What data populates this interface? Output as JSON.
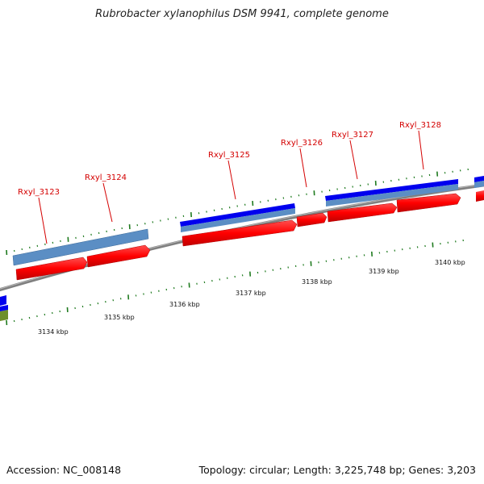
{
  "title": "Rubrobacter xylanophilus DSM 9941, complete genome",
  "footer": {
    "accession": "Accession: NC_008148",
    "topology": "Topology: circular; Length: 3,225,748 bp; Genes: 3,203"
  },
  "colors": {
    "backbone": "#8c8c8c",
    "forward_cds": "#0000ee",
    "forward_gene": "#5b8ec4",
    "reverse_gene": "#ff0000",
    "other_feature": "#6e8f2a",
    "tick": "#1e7a1e",
    "gene_label": "#d40000"
  },
  "position_labels": [
    "3134 kbp",
    "3135 kbp",
    "3136 kbp",
    "3137 kbp",
    "3138 kbp",
    "3139 kbp",
    "3140 kbp"
  ],
  "gene_labels": [
    "Rxyl_3123",
    "Rxyl_3124",
    "Rxyl_3125",
    "Rxyl_3126",
    "Rxyl_3127",
    "Rxyl_3128"
  ]
}
